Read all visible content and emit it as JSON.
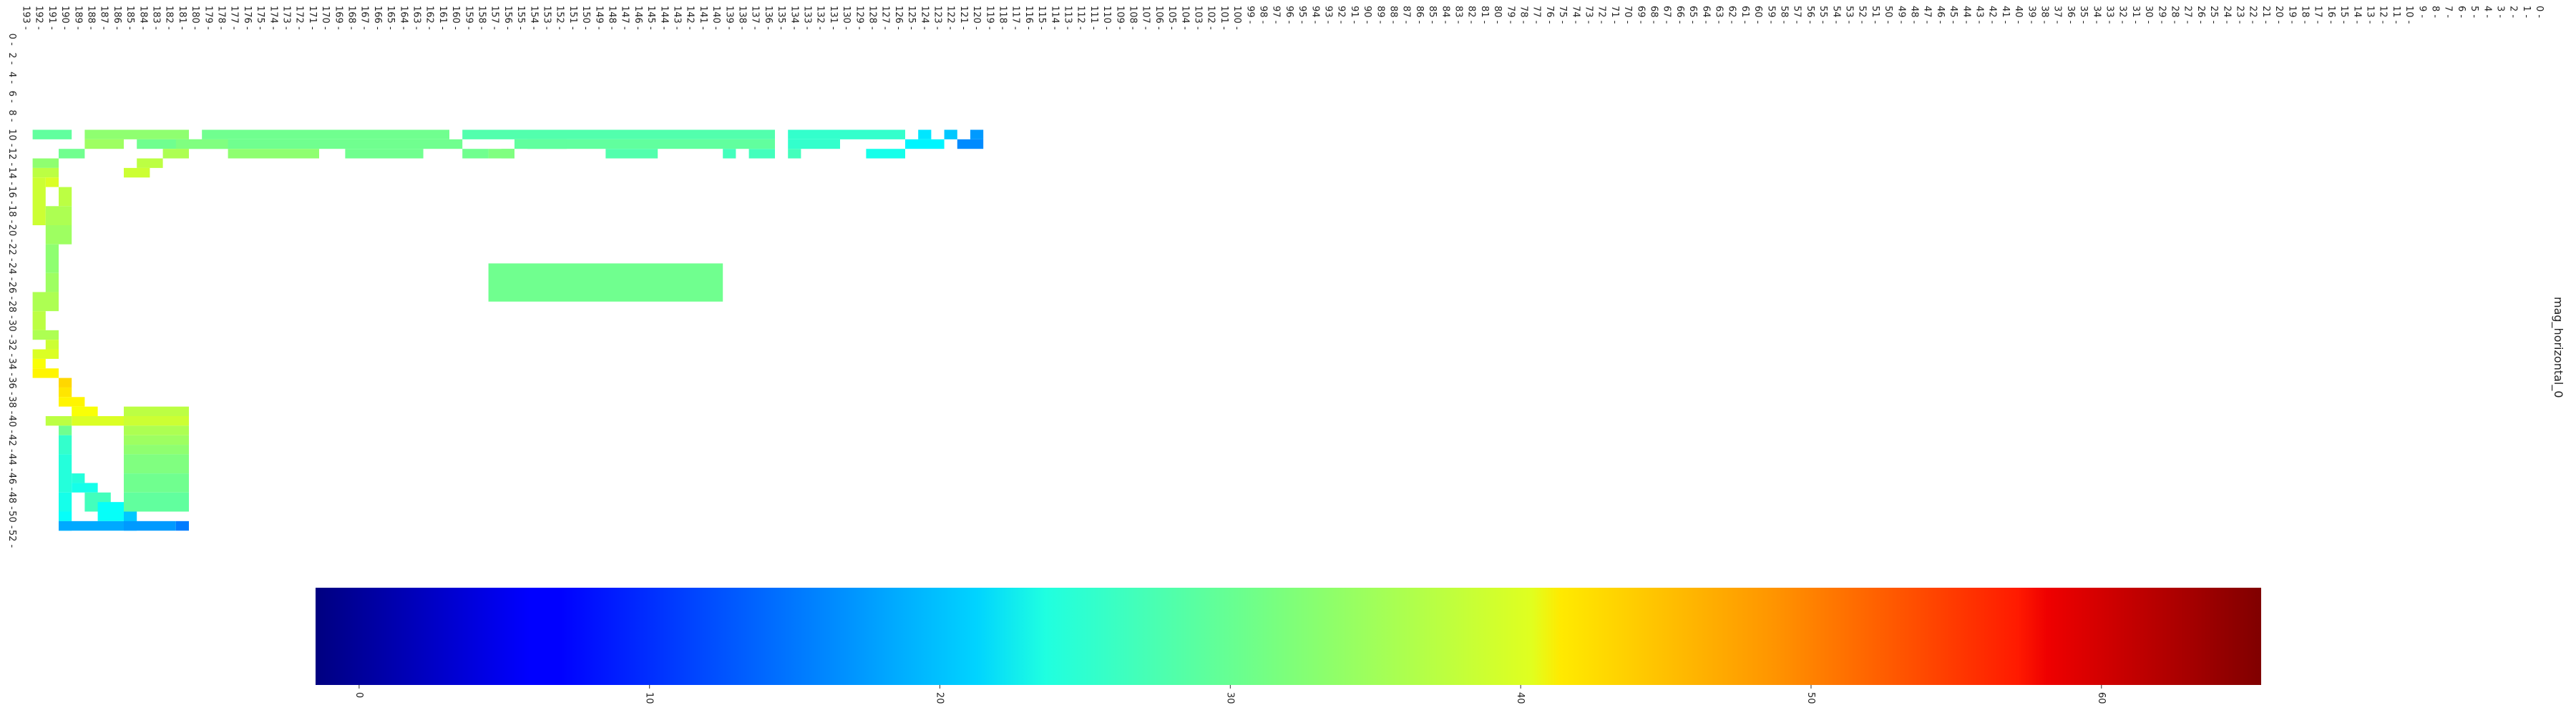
{
  "chart_data": {
    "type": "heatmap",
    "colormap": "jet",
    "orientation": "rotated-90",
    "side_label": "mag_horizontal_0",
    "rows": {
      "min": 0,
      "max": 193,
      "tick_step": 1
    },
    "cols": {
      "min": 0,
      "max": 53,
      "tick_step": 2,
      "label_max": 52
    },
    "colorbar": {
      "vmin": -1.5,
      "vmax": 65.5,
      "ticks": [
        0,
        10,
        20,
        30,
        40,
        50,
        60
      ]
    },
    "empty_value": null,
    "regions": [
      {
        "cols": [
          10,
          11
        ],
        "rows": [
          120,
          121
        ],
        "value": 17
      },
      {
        "cols": [
          10,
          11
        ],
        "rows": [
          122,
          123
        ],
        "value": 20
      },
      {
        "cols": [
          11,
          12
        ],
        "rows": [
          120,
          122
        ],
        "value": 16
      },
      {
        "cols": [
          10,
          11
        ],
        "rows": [
          124,
          125
        ],
        "value": 22
      },
      {
        "cols": [
          11,
          12
        ],
        "rows": [
          123,
          126
        ],
        "value": 23
      },
      {
        "cols": [
          12,
          13
        ],
        "rows": [
          126,
          129
        ],
        "value": 25
      },
      {
        "cols": [
          10,
          11
        ],
        "rows": [
          126,
          135
        ],
        "value": 27
      },
      {
        "cols": [
          10,
          11
        ],
        "rows": [
          136,
          160
        ],
        "value": 29
      },
      {
        "cols": [
          10,
          11
        ],
        "rows": [
          161,
          180
        ],
        "value": 31
      },
      {
        "cols": [
          10,
          11
        ],
        "rows": [
          181,
          189
        ],
        "value": 33
      },
      {
        "cols": [
          10,
          11
        ],
        "rows": [
          190,
          193
        ],
        "value": 30
      },
      {
        "cols": [
          11,
          12
        ],
        "rows": [
          131,
          135
        ],
        "value": 27
      },
      {
        "cols": [
          12,
          13
        ],
        "rows": [
          134,
          135
        ],
        "value": 28
      },
      {
        "cols": [
          12,
          13
        ],
        "rows": [
          136,
          138
        ],
        "value": 28
      },
      {
        "cols": [
          11,
          12
        ],
        "rows": [
          136,
          155
        ],
        "value": 30
      },
      {
        "cols": [
          12,
          13
        ],
        "rows": [
          139,
          140
        ],
        "value": 28
      },
      {
        "cols": [
          12,
          13
        ],
        "rows": [
          156,
          157
        ],
        "value": 31
      },
      {
        "cols": [
          11,
          12
        ],
        "rows": [
          160,
          185
        ],
        "value": 31
      },
      {
        "cols": [
          12,
          13
        ],
        "rows": [
          156,
          158
        ],
        "value": 32
      },
      {
        "cols": [
          11,
          12
        ],
        "rows": [
          186,
          189
        ],
        "value": 34
      },
      {
        "cols": [
          12,
          13
        ],
        "rows": [
          189,
          191
        ],
        "value": 31
      },
      {
        "cols": [
          13,
          14
        ],
        "rows": [
          191,
          193
        ],
        "value": 33
      },
      {
        "cols": [
          14,
          15
        ],
        "rows": [
          191,
          193
        ],
        "value": 36
      },
      {
        "cols": [
          15,
          20
        ],
        "rows": [
          192,
          193
        ],
        "value": 37
      },
      {
        "cols": [
          15,
          16
        ],
        "rows": [
          191,
          192
        ],
        "value": 38
      },
      {
        "cols": [
          16,
          18
        ],
        "rows": [
          190,
          191
        ],
        "value": 36
      },
      {
        "cols": [
          18,
          20
        ],
        "rows": [
          190,
          192
        ],
        "value": 35
      },
      {
        "cols": [
          20,
          22
        ],
        "rows": [
          190,
          192
        ],
        "value": 34
      },
      {
        "cols": [
          22,
          25
        ],
        "rows": [
          191,
          192
        ],
        "value": 33
      },
      {
        "cols": [
          25,
          27
        ],
        "rows": [
          191,
          192
        ],
        "value": 34
      },
      {
        "cols": [
          27,
          29
        ],
        "rows": [
          191,
          193
        ],
        "value": 35
      },
      {
        "cols": [
          29,
          31
        ],
        "rows": [
          192,
          193
        ],
        "value": 36
      },
      {
        "cols": [
          31,
          32
        ],
        "rows": [
          191,
          193
        ],
        "value": 35
      },
      {
        "cols": [
          32,
          33
        ],
        "rows": [
          191,
          192
        ],
        "value": 37
      },
      {
        "cols": [
          33,
          34
        ],
        "rows": [
          191,
          193
        ],
        "value": 38
      },
      {
        "cols": [
          34,
          35
        ],
        "rows": [
          192,
          193
        ],
        "value": 40
      },
      {
        "cols": [
          35,
          36
        ],
        "rows": [
          191,
          193
        ],
        "value": 41
      },
      {
        "cols": [
          36,
          37
        ],
        "rows": [
          190,
          191
        ],
        "value": 43
      },
      {
        "cols": [
          37,
          38
        ],
        "rows": [
          190,
          191
        ],
        "value": 42
      },
      {
        "cols": [
          38,
          39
        ],
        "rows": [
          189,
          191
        ],
        "value": 41
      },
      {
        "cols": [
          39,
          40
        ],
        "rows": [
          188,
          190
        ],
        "value": 40
      },
      {
        "cols": [
          40,
          41
        ],
        "rows": [
          186,
          190
        ],
        "value": 38
      },
      {
        "cols": [
          40,
          41
        ],
        "rows": [
          190,
          192
        ],
        "value": 36
      },
      {
        "cols": [
          41,
          42
        ],
        "rows": [
          190,
          191
        ],
        "value": 31
      },
      {
        "cols": [
          42,
          44
        ],
        "rows": [
          190,
          191
        ],
        "value": 27
      },
      {
        "cols": [
          44,
          48
        ],
        "rows": [
          190,
          191
        ],
        "value": 26
      },
      {
        "cols": [
          48,
          50
        ],
        "rows": [
          190,
          191
        ],
        "value": 25
      },
      {
        "cols": [
          50,
          51
        ],
        "rows": [
          190,
          191
        ],
        "value": 24
      },
      {
        "cols": [
          51,
          52
        ],
        "rows": [
          190,
          191
        ],
        "value": 22
      },
      {
        "cols": [
          46,
          47
        ],
        "rows": [
          189,
          190
        ],
        "value": 26
      },
      {
        "cols": [
          47,
          48
        ],
        "rows": [
          188,
          190
        ],
        "value": 25
      },
      {
        "cols": [
          48,
          50
        ],
        "rows": [
          187,
          189
        ],
        "value": 28
      },
      {
        "cols": [
          49,
          51
        ],
        "rows": [
          186,
          188
        ],
        "value": 24
      },
      {
        "cols": [
          50,
          52
        ],
        "rows": [
          185,
          186
        ],
        "value": 20
      },
      {
        "cols": [
          51,
          52
        ],
        "rows": [
          182,
          186
        ],
        "value": 17
      },
      {
        "cols": [
          51,
          52
        ],
        "rows": [
          181,
          182
        ],
        "value": 15
      },
      {
        "cols": [
          40,
          41
        ],
        "rows": [
          181,
          186
        ],
        "value": 37
      },
      {
        "cols": [
          39,
          40
        ],
        "rows": [
          181,
          186
        ],
        "value": 36
      },
      {
        "cols": [
          42,
          43
        ],
        "rows": [
          181,
          186
        ],
        "value": 34
      },
      {
        "cols": [
          43,
          44
        ],
        "rows": [
          181,
          186
        ],
        "value": 33
      },
      {
        "cols": [
          44,
          46
        ],
        "rows": [
          181,
          186
        ],
        "value": 32
      },
      {
        "cols": [
          46,
          48
        ],
        "rows": [
          181,
          186
        ],
        "value": 31
      },
      {
        "cols": [
          48,
          50
        ],
        "rows": [
          181,
          186
        ],
        "value": 30
      },
      {
        "cols": [
          41,
          42
        ],
        "rows": [
          181,
          186
        ],
        "value": 35
      },
      {
        "cols": [
          51,
          52
        ],
        "rows": [
          186,
          191
        ],
        "value": 18
      },
      {
        "cols": [
          12,
          13
        ],
        "rows": [
          171,
          178
        ],
        "value": 33
      },
      {
        "cols": [
          11,
          12
        ],
        "rows": [
          178,
          182
        ],
        "value": 32
      },
      {
        "cols": [
          12,
          13
        ],
        "rows": [
          163,
          169
        ],
        "value": 31
      },
      {
        "cols": [
          11,
          12
        ],
        "rows": [
          152,
          156
        ],
        "value": 30
      },
      {
        "cols": [
          12,
          13
        ],
        "rows": [
          145,
          149
        ],
        "value": 29
      },
      {
        "cols": [
          12,
          13
        ],
        "rows": [
          158,
          160
        ],
        "value": 31
      },
      {
        "cols": [
          24,
          28
        ],
        "rows": [
          140,
          158
        ],
        "value": 31
      },
      {
        "cols": [
          12,
          13
        ],
        "rows": [
          181,
          183
        ],
        "value": 35
      },
      {
        "cols": [
          13,
          14
        ],
        "rows": [
          183,
          185
        ],
        "value": 36
      },
      {
        "cols": [
          14,
          15
        ],
        "rows": [
          184,
          186
        ],
        "value": 37
      }
    ]
  }
}
